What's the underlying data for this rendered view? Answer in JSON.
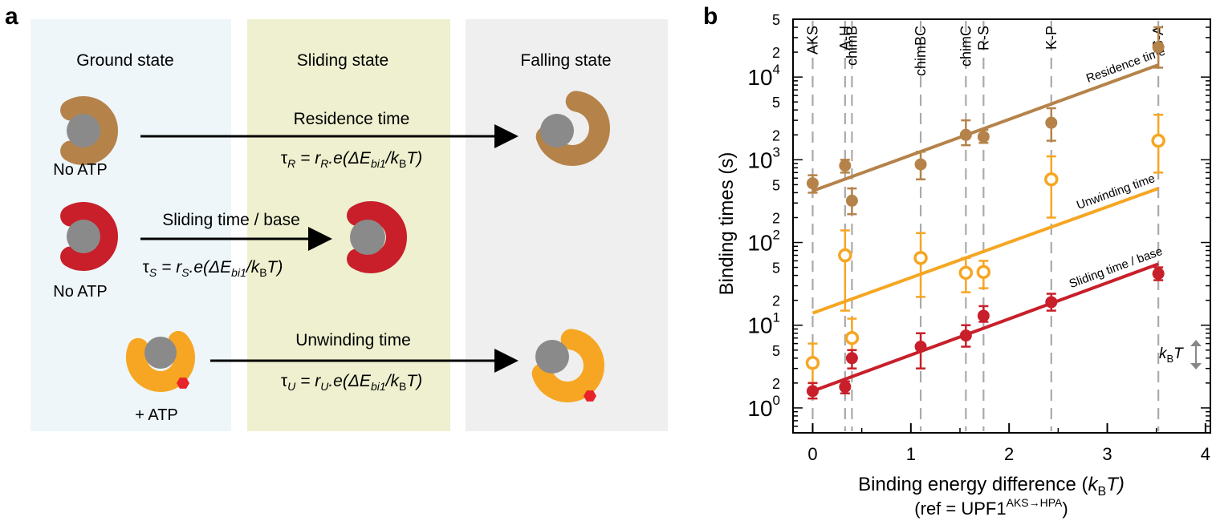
{
  "panels": {
    "a": "a",
    "b": "b"
  },
  "colors": {
    "ground_bg": "#eef6f9",
    "sliding_bg": "#eef0cf",
    "falling_bg": "#efefef",
    "brown": "#b5834a",
    "red": "#c81f2a",
    "orange": "#f6a623",
    "grey": "#8a8a8a",
    "atp": "#e8232a",
    "dashed": "#aaaaaa"
  },
  "schematic": {
    "columns": {
      "ground": "Ground state",
      "sliding": "Sliding state",
      "falling": "Falling state"
    },
    "labels": {
      "no_atp_1": "No ATP",
      "no_atp_2": "No ATP",
      "plus_atp": "+ ATP"
    },
    "arrows": {
      "residence": "Residence time",
      "sliding": "Sliding time / base",
      "unwinding": "Unwinding time"
    },
    "formulas": {
      "tau_r": {
        "tau": "τ",
        "sub": "R",
        "eq": " = r",
        "sub2": "R",
        "mid": ".e(",
        "de": "ΔE",
        "desub": "bi1",
        "slash": "/k",
        "ksub": "B",
        "end": "T)"
      },
      "tau_s": {
        "tau": "τ",
        "sub": "S",
        "eq": " = r",
        "sub2": "S",
        "mid": ".e(",
        "de": "ΔE",
        "desub": "bi1",
        "slash": "/k",
        "ksub": "B",
        "end": "T)"
      },
      "tau_u": {
        "tau": "τ",
        "sub": "U",
        "eq": " = r",
        "sub2": "U",
        "mid": ".e(",
        "de": "ΔE",
        "desub": "bi1",
        "slash": "/k",
        "ksub": "B",
        "end": "T)"
      }
    }
  },
  "chart_data": {
    "type": "scatter",
    "title": "",
    "ylabel": "Binding times (s)",
    "xlabel": {
      "main": "Binding energy difference (",
      "k": "k",
      "ksub": "B",
      "t": "T)",
      "ref_pre": "(ref = UPF1",
      "ref_sup": "AKS→HPA",
      "ref_post": ")"
    },
    "x_scale": "linear",
    "y_scale": "log",
    "xlim": [
      -0.2,
      4.05
    ],
    "ylim": [
      0.5,
      50000
    ],
    "x_ticks": [
      0,
      1,
      2,
      3,
      4
    ],
    "x_tick_labels": [
      "0",
      "1",
      "2",
      "3",
      "4"
    ],
    "y_decades": [
      {
        "value": 1,
        "base": "10",
        "exp": "0"
      },
      {
        "value": 10,
        "base": "10",
        "exp": "1"
      },
      {
        "value": 100,
        "base": "10",
        "exp": "2"
      },
      {
        "value": 1000,
        "base": "10",
        "exp": "3"
      },
      {
        "value": 10000,
        "base": "10",
        "exp": "4"
      }
    ],
    "y_minor_labels": [
      {
        "value": 2,
        "label": "2"
      },
      {
        "value": 5,
        "label": "5"
      },
      {
        "value": 20,
        "label": "2"
      },
      {
        "value": 50,
        "label": "5"
      },
      {
        "value": 200,
        "label": "2"
      },
      {
        "value": 500,
        "label": "5"
      },
      {
        "value": 2000,
        "label": "2"
      },
      {
        "value": 5000,
        "label": "5"
      },
      {
        "value": 20000,
        "label": "2"
      },
      {
        "value": 50000,
        "label": "5"
      }
    ],
    "mutants": [
      {
        "name": "AKS",
        "x": 0.0
      },
      {
        "name": "A-H",
        "x": 0.33
      },
      {
        "name": "chimB",
        "x": 0.4
      },
      {
        "name": "chimBC",
        "x": 1.1
      },
      {
        "name": "chimC",
        "x": 1.56
      },
      {
        "name": "R-S",
        "x": 1.74
      },
      {
        "name": "K-P",
        "x": 2.43
      },
      {
        "name": "S-A",
        "x": 3.52
      }
    ],
    "series": [
      {
        "name": "Residence time",
        "marker": "filled",
        "color": "#b5834a",
        "points": [
          {
            "x": 0.0,
            "y": 520,
            "lo": 400,
            "hi": 650
          },
          {
            "x": 0.33,
            "y": 850,
            "lo": 700,
            "hi": 1000
          },
          {
            "x": 0.4,
            "y": 320,
            "lo": 220,
            "hi": 450
          },
          {
            "x": 1.1,
            "y": 880,
            "lo": 580,
            "hi": 1250
          },
          {
            "x": 1.56,
            "y": 2000,
            "lo": 1500,
            "hi": 3000
          },
          {
            "x": 1.74,
            "y": 1900,
            "lo": 1600,
            "hi": 2300
          },
          {
            "x": 2.43,
            "y": 2800,
            "lo": 1700,
            "hi": 4200
          },
          {
            "x": 3.52,
            "y": 23000,
            "lo": 13000,
            "hi": 40000
          }
        ],
        "fit": {
          "x1": 0.0,
          "y1": 420,
          "x2": 3.52,
          "y2": 14000
        }
      },
      {
        "name": "Unwinding time",
        "marker": "open",
        "color": "#f6a623",
        "points": [
          {
            "x": 0.0,
            "y": 3.5,
            "lo": 2.0,
            "hi": 6.0
          },
          {
            "x": 0.33,
            "y": 70,
            "lo": 15,
            "hi": 140
          },
          {
            "x": 0.4,
            "y": 7.0,
            "lo": 5.0,
            "hi": 12.0
          },
          {
            "x": 1.1,
            "y": 65,
            "lo": 22,
            "hi": 130
          },
          {
            "x": 1.56,
            "y": 43,
            "lo": 25,
            "hi": 65
          },
          {
            "x": 1.74,
            "y": 44,
            "lo": 28,
            "hi": 60
          },
          {
            "x": 2.43,
            "y": 580,
            "lo": 200,
            "hi": 1100
          },
          {
            "x": 3.52,
            "y": 1700,
            "lo": 700,
            "hi": 3500
          }
        ],
        "fit": {
          "x1": 0.0,
          "y1": 14,
          "x2": 3.52,
          "y2": 450
        }
      },
      {
        "name": "Sliding time / base",
        "marker": "filled",
        "color": "#c81f2a",
        "points": [
          {
            "x": 0.0,
            "y": 1.6,
            "lo": 1.3,
            "hi": 2.0
          },
          {
            "x": 0.33,
            "y": 1.8,
            "lo": 1.5,
            "hi": 2.1
          },
          {
            "x": 0.4,
            "y": 4.0,
            "lo": 3.0,
            "hi": 5.0
          },
          {
            "x": 1.1,
            "y": 5.5,
            "lo": 3.0,
            "hi": 8.0
          },
          {
            "x": 1.56,
            "y": 7.5,
            "lo": 5.5,
            "hi": 10.0
          },
          {
            "x": 1.74,
            "y": 13,
            "lo": 11,
            "hi": 17
          },
          {
            "x": 2.43,
            "y": 19,
            "lo": 15,
            "hi": 24
          },
          {
            "x": 3.52,
            "y": 42,
            "lo": 35,
            "hi": 50
          }
        ],
        "fit": {
          "x1": 0.0,
          "y1": 1.6,
          "x2": 3.52,
          "y2": 55
        }
      }
    ],
    "annotations": {
      "kbt_k": "k",
      "kbt_sub": "B",
      "kbt_t": "T"
    }
  }
}
